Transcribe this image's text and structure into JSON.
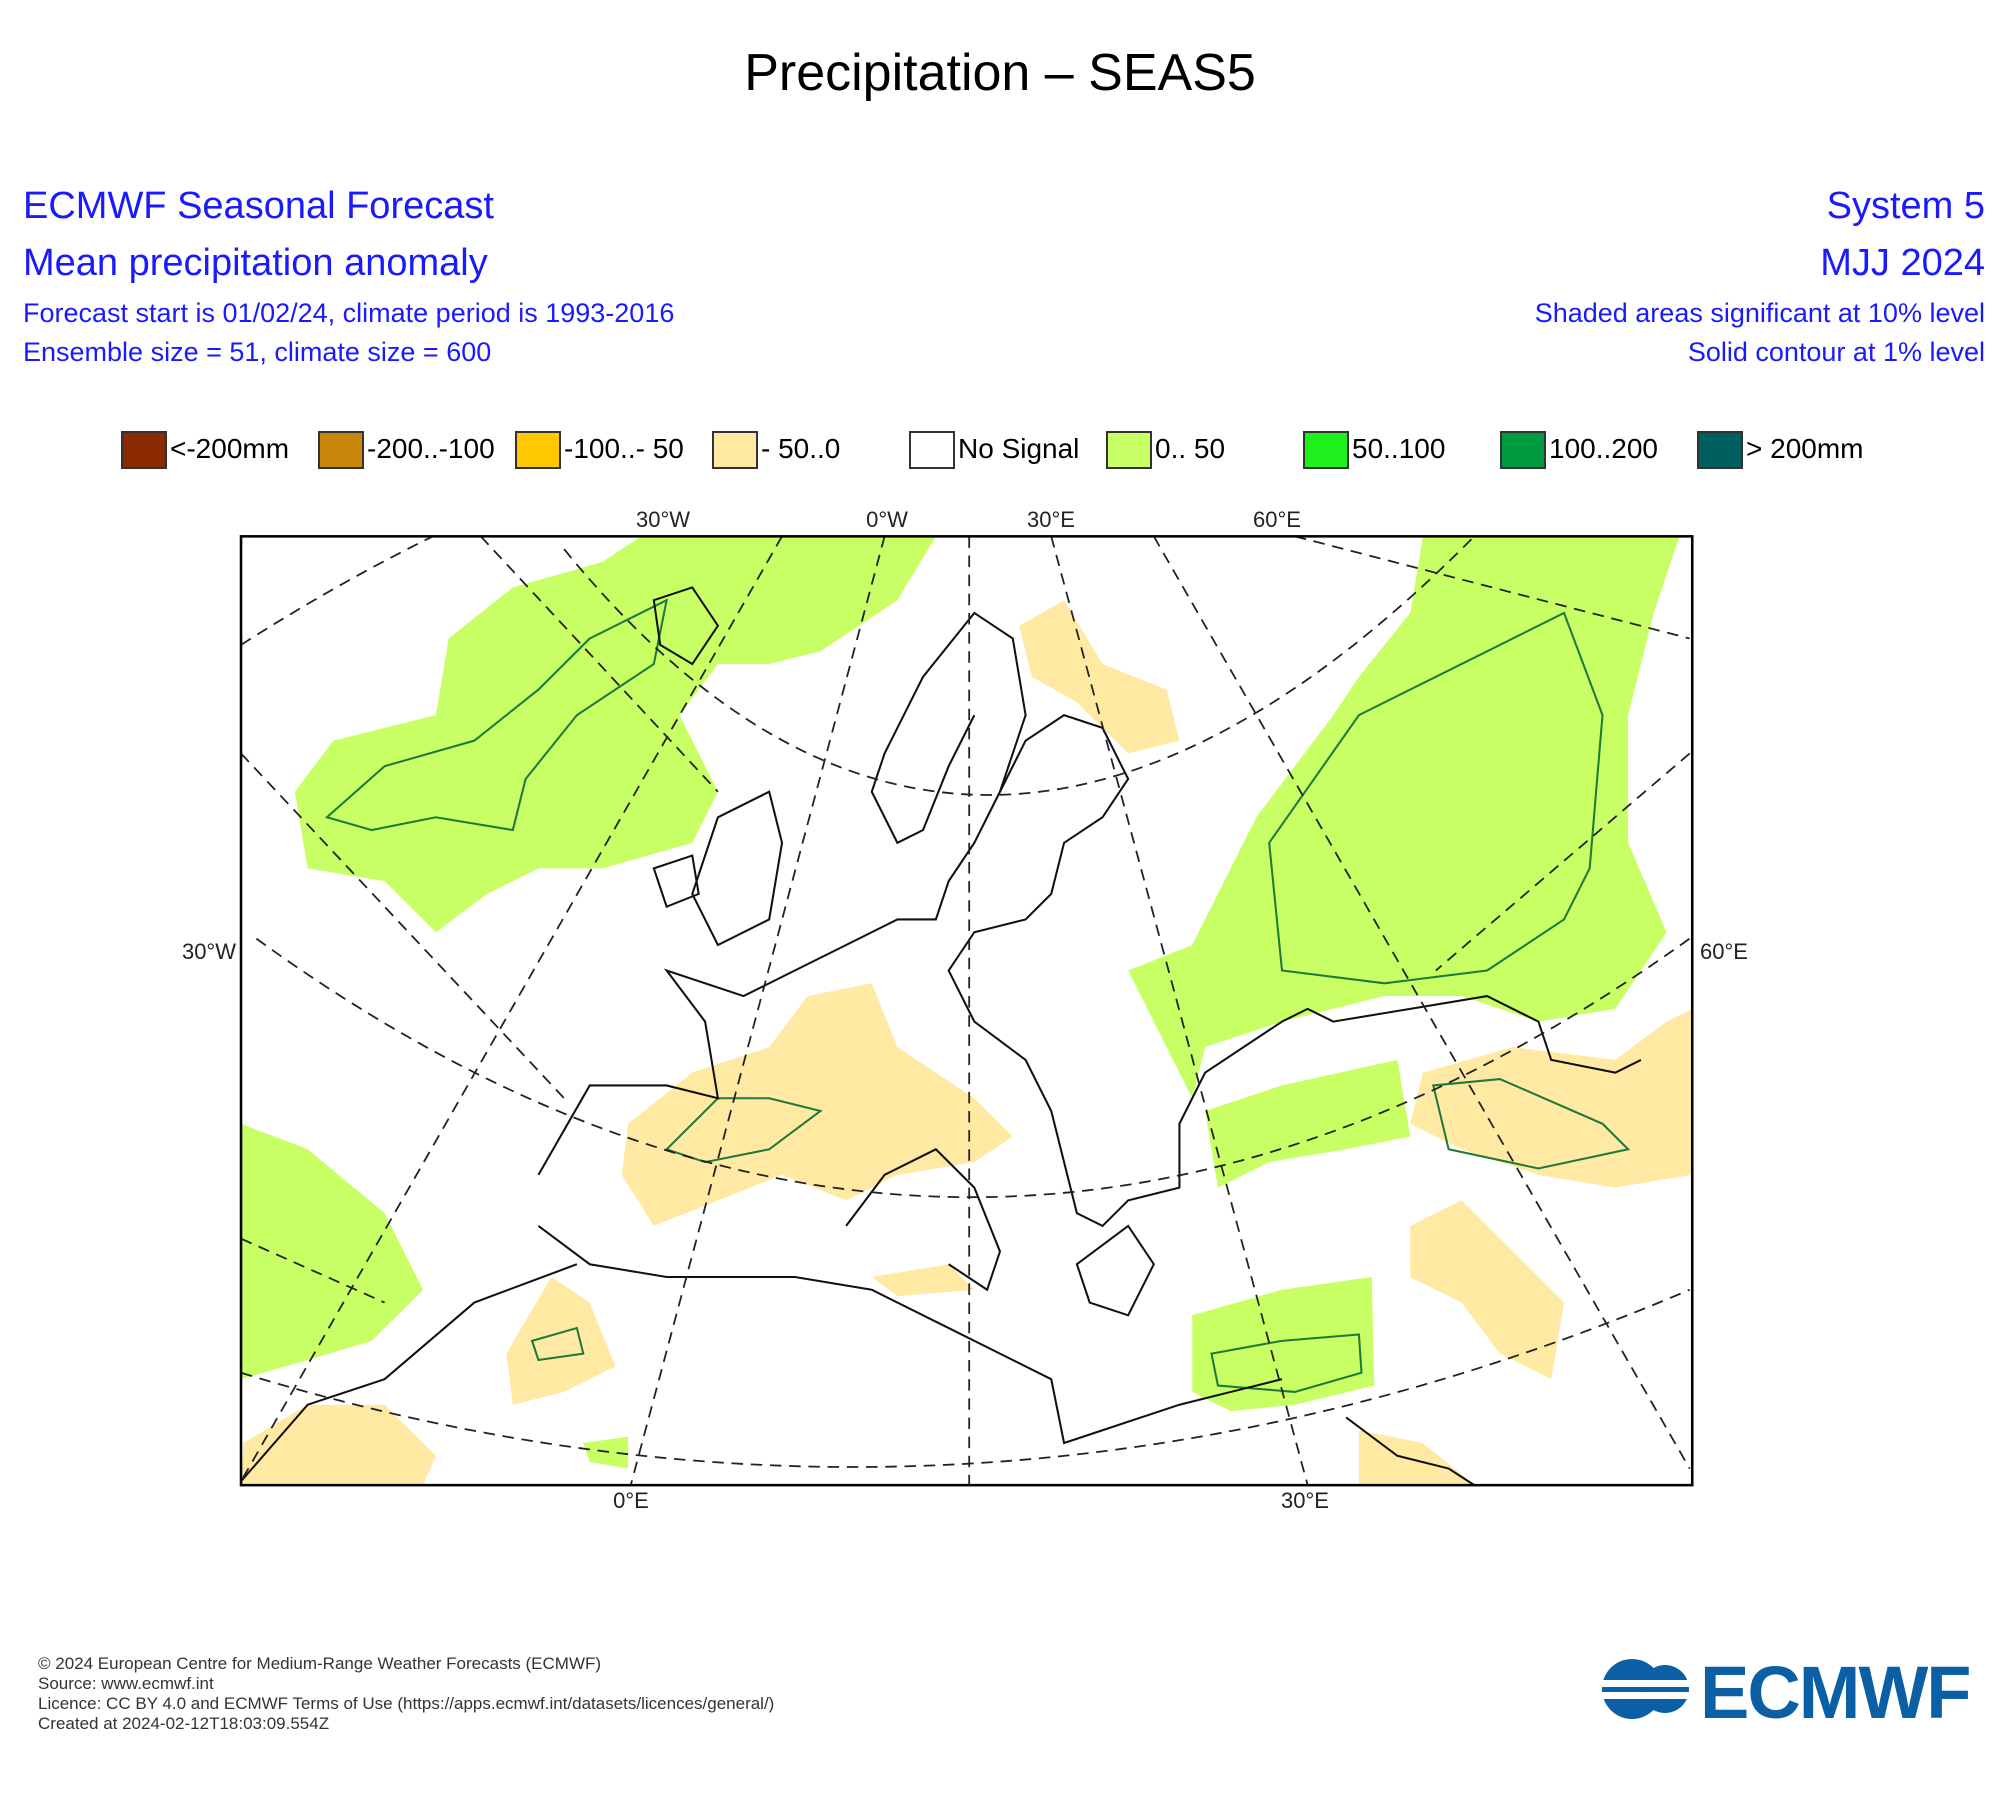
{
  "header": {
    "title": "Precipitation – SEAS5",
    "left": [
      "ECMWF Seasonal Forecast",
      "Mean precipitation anomaly",
      "Forecast start is 01/02/24, climate period is 1993-2016",
      "Ensemble size = 51, climate size = 600"
    ],
    "right": [
      "System 5",
      "MJJ 2024",
      "Shaded areas significant at 10% level",
      "Solid contour at 1% level"
    ]
  },
  "legend": {
    "items": [
      {
        "label": "<-200mm",
        "color": "#8b2a00"
      },
      {
        "label": "-200..-100",
        "color": "#c8860a"
      },
      {
        "label": "-100..- 50",
        "color": "#ffc800"
      },
      {
        "label": "- 50..0",
        "color": "#ffe9a3"
      },
      {
        "label": "No Signal",
        "color": "#ffffff"
      },
      {
        "label": "0.. 50",
        "color": "#c8ff64"
      },
      {
        "label": "50..100",
        "color": "#1ef01e"
      },
      {
        "label": "100..200",
        "color": "#009a40"
      },
      {
        "label": "> 200mm",
        "color": "#006060"
      }
    ]
  },
  "map": {
    "top_labels": [
      "30°W",
      "0°W",
      "30°E",
      "60°E"
    ],
    "left_label": "30°W",
    "right_label": "60°E",
    "bottom_labels": [
      "0°E",
      "30°E"
    ]
  },
  "footer": {
    "lines": [
      "© 2024 European Centre for Medium-Range Weather Forecasts (ECMWF)",
      "Source: www.ecmwf.int",
      "Licence: CC BY 4.0 and ECMWF Terms of Use (https://apps.ecmwf.int/datasets/licences/general/)",
      "Created at 2024-02-12T18:03:09.554Z"
    ]
  },
  "logo": {
    "text": "ECMWF"
  }
}
